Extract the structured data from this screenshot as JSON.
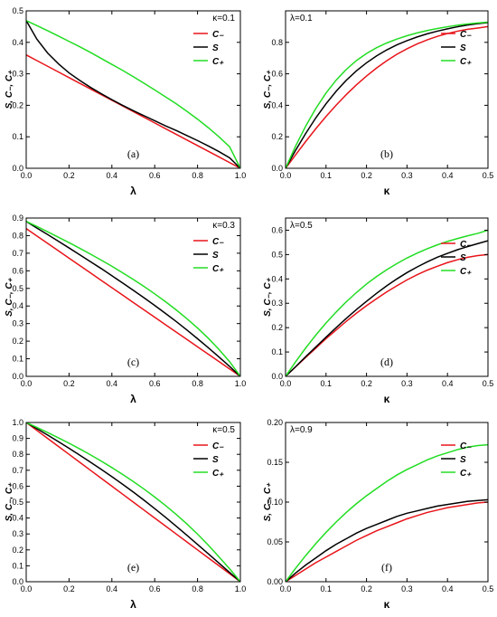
{
  "chart_data": [
    {
      "type": "line",
      "panel_label": "(a)",
      "param_text": "κ=0.1",
      "param_pos": "top-right",
      "xlabel": "λ",
      "ylabel": "S, C₋, C₊",
      "xlim": [
        0,
        1
      ],
      "ylim": [
        0,
        0.5
      ],
      "xticks": [
        "0.0",
        "0.2",
        "0.4",
        "0.6",
        "0.8",
        "1.0"
      ],
      "yticks": [
        "0.0",
        "0.1",
        "0.2",
        "0.3",
        "0.4",
        "0.5"
      ],
      "x": [
        0,
        0.05,
        0.1,
        0.15,
        0.2,
        0.25,
        0.3,
        0.35,
        0.4,
        0.45,
        0.5,
        0.55,
        0.6,
        0.65,
        0.7,
        0.75,
        0.8,
        0.85,
        0.9,
        0.95,
        1.0
      ],
      "legend_pos": "top-right",
      "series": [
        {
          "name": "C₋",
          "color": "#e8141a",
          "values": [
            0.36,
            0.342,
            0.324,
            0.306,
            0.288,
            0.27,
            0.252,
            0.234,
            0.216,
            0.198,
            0.18,
            0.162,
            0.144,
            0.126,
            0.108,
            0.09,
            0.072,
            0.054,
            0.036,
            0.018,
            0.0
          ]
        },
        {
          "name": "S",
          "color": "#000000",
          "values": [
            0.469,
            0.41,
            0.366,
            0.332,
            0.303,
            0.279,
            0.257,
            0.237,
            0.218,
            0.2,
            0.183,
            0.167,
            0.151,
            0.135,
            0.12,
            0.104,
            0.088,
            0.071,
            0.053,
            0.033,
            0.0
          ]
        },
        {
          "name": "C₊",
          "color": "#22dd22",
          "values": [
            0.469,
            0.453,
            0.437,
            0.42,
            0.403,
            0.386,
            0.368,
            0.349,
            0.33,
            0.311,
            0.291,
            0.27,
            0.249,
            0.227,
            0.205,
            0.181,
            0.156,
            0.129,
            0.1,
            0.068,
            0.0
          ]
        }
      ]
    },
    {
      "type": "line",
      "panel_label": "(b)",
      "param_text": "λ=0.1",
      "param_pos": "top-left",
      "xlabel": "κ",
      "ylabel": "S, C₋, C₊",
      "xlim": [
        0,
        0.5
      ],
      "ylim": [
        0,
        1.0
      ],
      "xticks": [
        "0.0",
        "0.1",
        "0.2",
        "0.3",
        "0.4",
        "0.5"
      ],
      "yticks": [
        "0.0",
        "0.2",
        "0.4",
        "0.6",
        "0.8"
      ],
      "x": [
        0,
        0.025,
        0.05,
        0.075,
        0.1,
        0.125,
        0.15,
        0.175,
        0.2,
        0.225,
        0.25,
        0.275,
        0.3,
        0.325,
        0.35,
        0.375,
        0.4,
        0.425,
        0.45,
        0.475,
        0.5
      ],
      "legend_pos": "top-right",
      "series": [
        {
          "name": "C₋",
          "color": "#e8141a",
          "values": [
            0.0,
            0.086,
            0.171,
            0.252,
            0.329,
            0.401,
            0.468,
            0.53,
            0.586,
            0.637,
            0.683,
            0.724,
            0.759,
            0.79,
            0.816,
            0.838,
            0.856,
            0.871,
            0.883,
            0.891,
            0.9
          ]
        },
        {
          "name": "S",
          "color": "#000000",
          "values": [
            0.0,
            0.115,
            0.222,
            0.321,
            0.41,
            0.489,
            0.559,
            0.619,
            0.67,
            0.714,
            0.752,
            0.784,
            0.811,
            0.834,
            0.854,
            0.871,
            0.886,
            0.899,
            0.91,
            0.919,
            0.925
          ]
        },
        {
          "name": "C₊",
          "color": "#22dd22",
          "values": [
            0.0,
            0.142,
            0.269,
            0.381,
            0.478,
            0.56,
            0.628,
            0.684,
            0.729,
            0.766,
            0.796,
            0.821,
            0.842,
            0.86,
            0.875,
            0.888,
            0.899,
            0.909,
            0.917,
            0.923,
            0.928
          ]
        }
      ]
    },
    {
      "type": "line",
      "panel_label": "(c)",
      "param_text": "κ=0.3",
      "param_pos": "top-right",
      "xlabel": "λ",
      "ylabel": "S, C₋, C₊",
      "xlim": [
        0,
        1
      ],
      "ylim": [
        0,
        0.9
      ],
      "xticks": [
        "0.0",
        "0.2",
        "0.4",
        "0.6",
        "0.8",
        "1.0"
      ],
      "yticks": [
        "0.0",
        "0.1",
        "0.2",
        "0.3",
        "0.4",
        "0.5",
        "0.6",
        "0.7",
        "0.8",
        "0.9"
      ],
      "x": [
        0,
        0.05,
        0.1,
        0.15,
        0.2,
        0.25,
        0.3,
        0.35,
        0.4,
        0.45,
        0.5,
        0.55,
        0.6,
        0.65,
        0.7,
        0.75,
        0.8,
        0.85,
        0.9,
        0.95,
        1.0
      ],
      "legend_pos": "top-right",
      "series": [
        {
          "name": "C₋",
          "color": "#e8141a",
          "values": [
            0.84,
            0.798,
            0.756,
            0.714,
            0.672,
            0.63,
            0.588,
            0.546,
            0.504,
            0.462,
            0.42,
            0.378,
            0.336,
            0.294,
            0.252,
            0.21,
            0.168,
            0.126,
            0.084,
            0.042,
            0.0
          ]
        },
        {
          "name": "S",
          "color": "#000000",
          "values": [
            0.881,
            0.843,
            0.806,
            0.768,
            0.73,
            0.691,
            0.652,
            0.613,
            0.572,
            0.531,
            0.489,
            0.447,
            0.403,
            0.358,
            0.312,
            0.264,
            0.214,
            0.163,
            0.11,
            0.056,
            0.0
          ]
        },
        {
          "name": "C₊",
          "color": "#22dd22",
          "values": [
            0.881,
            0.852,
            0.822,
            0.791,
            0.76,
            0.728,
            0.695,
            0.661,
            0.626,
            0.589,
            0.551,
            0.511,
            0.469,
            0.425,
            0.378,
            0.328,
            0.275,
            0.217,
            0.153,
            0.083,
            0.0
          ]
        }
      ]
    },
    {
      "type": "line",
      "panel_label": "(d)",
      "param_text": "λ=0.5",
      "param_pos": "top-left",
      "xlabel": "κ",
      "ylabel": "S, C₋, C₊",
      "xlim": [
        0,
        0.5
      ],
      "ylim": [
        0,
        0.65
      ],
      "xticks": [
        "0.0",
        "0.1",
        "0.2",
        "0.3",
        "0.4",
        "0.5"
      ],
      "yticks": [
        "0.0",
        "0.1",
        "0.2",
        "0.3",
        "0.4",
        "0.5",
        "0.6"
      ],
      "x": [
        0,
        0.025,
        0.05,
        0.075,
        0.1,
        0.125,
        0.15,
        0.175,
        0.2,
        0.225,
        0.25,
        0.275,
        0.3,
        0.325,
        0.35,
        0.375,
        0.4,
        0.425,
        0.45,
        0.475,
        0.5
      ],
      "legend_pos": "right",
      "series": [
        {
          "name": "C₋",
          "color": "#e8141a",
          "values": [
            0.0,
            0.039,
            0.078,
            0.116,
            0.155,
            0.19,
            0.226,
            0.259,
            0.29,
            0.319,
            0.347,
            0.372,
            0.396,
            0.417,
            0.436,
            0.452,
            0.467,
            0.479,
            0.489,
            0.496,
            0.5
          ]
        },
        {
          "name": "S",
          "color": "#000000",
          "values": [
            0.0,
            0.04,
            0.081,
            0.121,
            0.161,
            0.2,
            0.238,
            0.274,
            0.308,
            0.341,
            0.372,
            0.4,
            0.426,
            0.449,
            0.47,
            0.489,
            0.505,
            0.52,
            0.533,
            0.545,
            0.557
          ]
        },
        {
          "name": "C₊",
          "color": "#22dd22",
          "values": [
            0.0,
            0.06,
            0.117,
            0.17,
            0.219,
            0.264,
            0.306,
            0.344,
            0.379,
            0.41,
            0.438,
            0.463,
            0.486,
            0.506,
            0.524,
            0.54,
            0.554,
            0.566,
            0.577,
            0.587,
            0.6
          ]
        }
      ]
    },
    {
      "type": "line",
      "panel_label": "(e)",
      "param_text": "κ=0.5",
      "param_pos": "top-right",
      "xlabel": "λ",
      "ylabel": "S, C₋, C₊",
      "xlim": [
        0,
        1
      ],
      "ylim": [
        0,
        1.0
      ],
      "xticks": [
        "0.0",
        "0.2",
        "0.4",
        "0.6",
        "0.8",
        "1.0"
      ],
      "yticks": [
        "0.0",
        "0.1",
        "0.2",
        "0.3",
        "0.4",
        "0.5",
        "0.6",
        "0.7",
        "0.8",
        "0.9",
        "1.0"
      ],
      "x": [
        0,
        0.05,
        0.1,
        0.15,
        0.2,
        0.25,
        0.3,
        0.35,
        0.4,
        0.45,
        0.5,
        0.55,
        0.6,
        0.65,
        0.7,
        0.75,
        0.8,
        0.85,
        0.9,
        0.95,
        1.0
      ],
      "legend_pos": "top-right",
      "series": [
        {
          "name": "C₋",
          "color": "#e8141a",
          "values": [
            1.0,
            0.95,
            0.9,
            0.85,
            0.8,
            0.75,
            0.7,
            0.65,
            0.6,
            0.55,
            0.5,
            0.45,
            0.4,
            0.35,
            0.3,
            0.25,
            0.2,
            0.15,
            0.1,
            0.05,
            0.0
          ]
        },
        {
          "name": "S",
          "color": "#000000",
          "values": [
            1.0,
            0.961,
            0.921,
            0.88,
            0.838,
            0.795,
            0.751,
            0.706,
            0.66,
            0.612,
            0.563,
            0.512,
            0.459,
            0.405,
            0.349,
            0.292,
            0.234,
            0.176,
            0.117,
            0.058,
            0.0
          ]
        },
        {
          "name": "C₊",
          "color": "#22dd22",
          "values": [
            1.0,
            0.969,
            0.937,
            0.904,
            0.87,
            0.834,
            0.797,
            0.758,
            0.717,
            0.674,
            0.629,
            0.582,
            0.532,
            0.479,
            0.423,
            0.363,
            0.299,
            0.23,
            0.156,
            0.081,
            0.0
          ]
        }
      ]
    },
    {
      "type": "line",
      "panel_label": "(f)",
      "param_text": "λ=0.9",
      "param_pos": "top-left",
      "xlabel": "κ",
      "ylabel": "S, C₋, C₊",
      "xlim": [
        0,
        0.5
      ],
      "ylim": [
        0,
        0.2
      ],
      "xticks": [
        "0.0",
        "0.1",
        "0.2",
        "0.3",
        "0.4",
        "0.5"
      ],
      "yticks": [
        "0.00",
        "0.05",
        "0.10",
        "0.15",
        "0.20"
      ],
      "x": [
        0,
        0.025,
        0.05,
        0.075,
        0.1,
        0.125,
        0.15,
        0.175,
        0.2,
        0.225,
        0.25,
        0.275,
        0.3,
        0.325,
        0.35,
        0.375,
        0.4,
        0.425,
        0.45,
        0.475,
        0.5
      ],
      "legend_pos": "top-right",
      "series": [
        {
          "name": "C₋",
          "color": "#e8141a",
          "values": [
            0.0,
            0.008,
            0.016,
            0.024,
            0.031,
            0.038,
            0.045,
            0.052,
            0.058,
            0.064,
            0.069,
            0.074,
            0.079,
            0.083,
            0.087,
            0.09,
            0.093,
            0.095,
            0.097,
            0.099,
            0.1
          ]
        },
        {
          "name": "S",
          "color": "#000000",
          "values": [
            0.0,
            0.011,
            0.021,
            0.03,
            0.039,
            0.047,
            0.054,
            0.061,
            0.067,
            0.072,
            0.077,
            0.082,
            0.086,
            0.089,
            0.092,
            0.095,
            0.097,
            0.099,
            0.101,
            0.102,
            0.103
          ]
        },
        {
          "name": "C₊",
          "color": "#22dd22",
          "values": [
            0.0,
            0.017,
            0.033,
            0.048,
            0.062,
            0.075,
            0.087,
            0.098,
            0.108,
            0.117,
            0.126,
            0.134,
            0.141,
            0.147,
            0.153,
            0.158,
            0.162,
            0.166,
            0.169,
            0.171,
            0.172
          ]
        }
      ]
    }
  ]
}
